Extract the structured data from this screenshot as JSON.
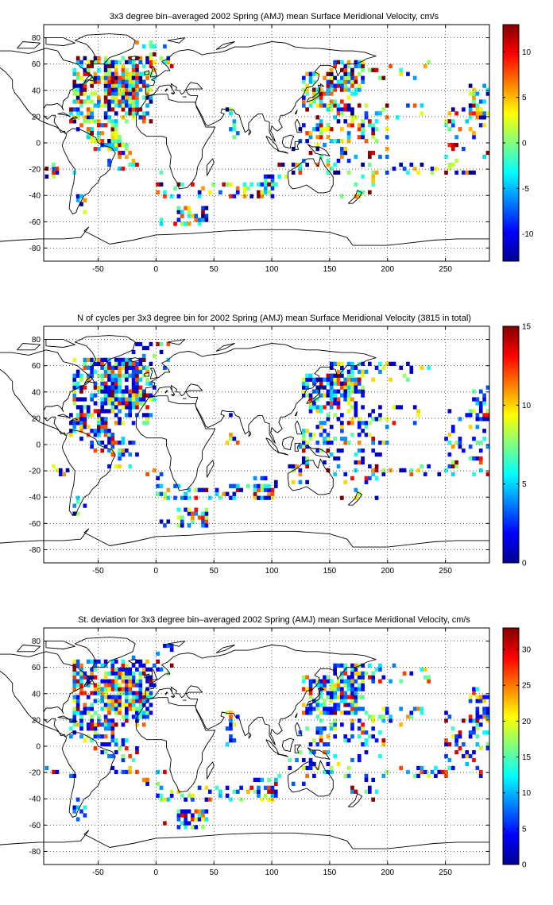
{
  "chart_data": [
    {
      "type": "heatmap",
      "title": "3x3 degree bin–averaged 2002 Spring (AMJ) mean Surface Meridional Velocity, cm/s",
      "xlabel": "",
      "ylabel": "",
      "xlim": [
        -97,
        288
      ],
      "ylim": [
        -90,
        90
      ],
      "xticks": [
        -50,
        0,
        50,
        100,
        150,
        200,
        250
      ],
      "yticks": [
        -80,
        -60,
        -40,
        -20,
        0,
        20,
        40,
        60,
        80
      ],
      "grid": true,
      "colormap": "jet",
      "colorbar": {
        "min": -13,
        "max": 13,
        "ticks": [
          -10,
          -5,
          0,
          5,
          10
        ]
      },
      "seed": 11,
      "value_mode": "signed"
    },
    {
      "type": "heatmap",
      "title": "N of cycles per 3x3 degree bin for 2002 Spring (AMJ) mean Surface Meridional Velocity (3815 in total)",
      "xlabel": "",
      "ylabel": "",
      "xlim": [
        -97,
        288
      ],
      "ylim": [
        -90,
        90
      ],
      "xticks": [
        -50,
        0,
        50,
        100,
        150,
        200,
        250
      ],
      "yticks": [
        -80,
        -60,
        -40,
        -20,
        0,
        20,
        40,
        60,
        80
      ],
      "grid": true,
      "colormap": "jet",
      "colorbar": {
        "min": 0,
        "max": 15,
        "ticks": [
          0,
          5,
          10,
          15
        ]
      },
      "seed": 23,
      "value_mode": "count"
    },
    {
      "type": "heatmap",
      "title": "St. deviation for 3x3 degree bin–averaged 2002 Spring (AMJ) mean Surface Meridional Velocity, cm/s",
      "xlabel": "",
      "ylabel": "",
      "xlim": [
        -97,
        288
      ],
      "ylim": [
        -90,
        90
      ],
      "xticks": [
        -50,
        0,
        50,
        100,
        150,
        200,
        250
      ],
      "yticks": [
        -80,
        -60,
        -40,
        -20,
        0,
        20,
        40,
        60,
        80
      ],
      "grid": true,
      "colormap": "jet",
      "colorbar": {
        "min": 0,
        "max": 33,
        "ticks": [
          0,
          5,
          10,
          15,
          20,
          25,
          30
        ]
      },
      "seed": 37,
      "value_mode": "std"
    }
  ]
}
